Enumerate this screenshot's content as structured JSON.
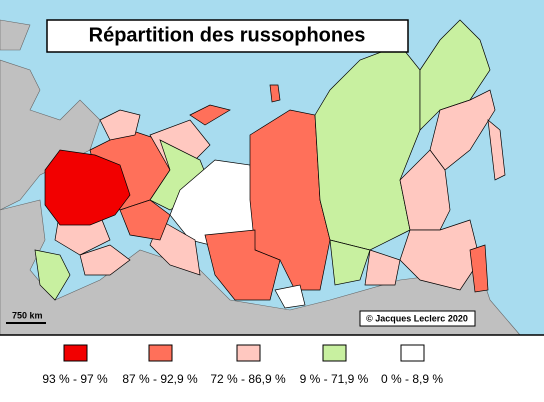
{
  "title": "Répartition des russophones",
  "scale_label": "750 km",
  "credit": "© Jacques Leclerc 2020",
  "legend": [
    {
      "label": "93 % - 97 %",
      "color": "#f20000"
    },
    {
      "label": "87 % - 92,9 %",
      "color": "#ff705a"
    },
    {
      "label": "72 % - 86,9 %",
      "color": "#ffc8c0"
    },
    {
      "label": "9 % - 71,9 %",
      "color": "#c8f0a0"
    },
    {
      "label": "0 % - 8,9 %",
      "color": "#ffffff"
    }
  ]
}
